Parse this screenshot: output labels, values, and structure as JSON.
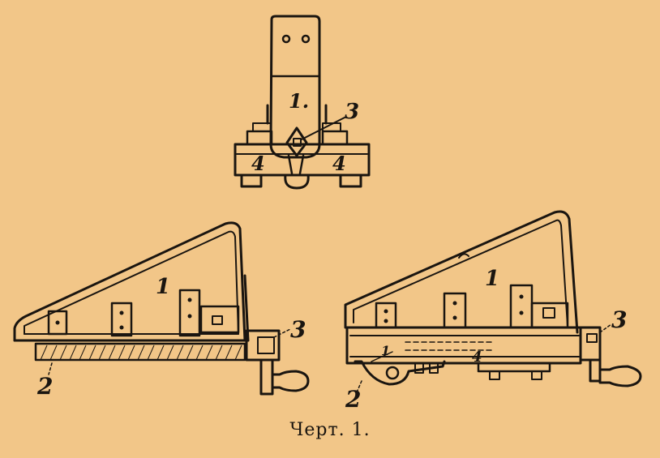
{
  "caption": "Черт. 1.",
  "top_view": {
    "labels": [
      "1.",
      "3",
      "4",
      "4"
    ]
  },
  "left_view": {
    "labels": [
      "1",
      "3",
      "2"
    ]
  },
  "right_view": {
    "labels": [
      "1",
      "3",
      "2",
      "1",
      "4"
    ]
  },
  "colors": {
    "paper": "#f2c688",
    "ink": "#1a1510"
  }
}
